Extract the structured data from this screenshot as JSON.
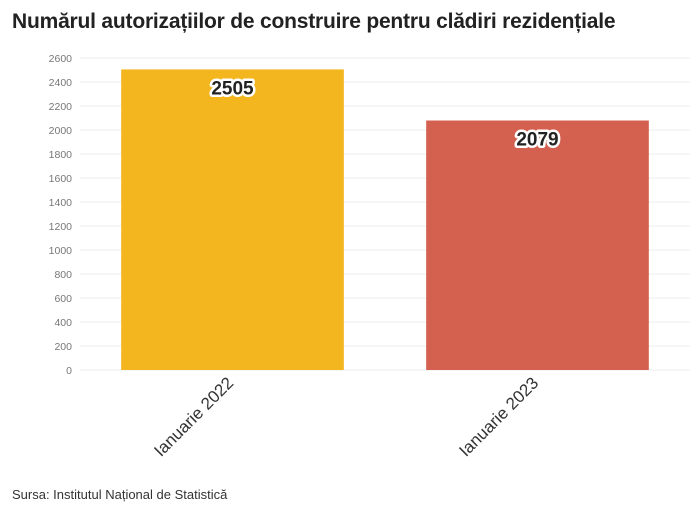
{
  "title": "Numărul autorizațiilor de construire pentru clădiri rezidențiale",
  "source": "Sursa: Institutul Național de Statistică",
  "chart_data": {
    "type": "bar",
    "title": "Numărul autorizațiilor de construire pentru clădiri rezidențiale",
    "categories": [
      "Ianuarie 2022",
      "Ianuarie 2023"
    ],
    "values": [
      2505,
      2079
    ],
    "data_labels": [
      "2505",
      "2079"
    ],
    "colors": [
      "#f4b61f",
      "#d4604f"
    ],
    "ylim": [
      0,
      2600
    ],
    "yticks": [
      0,
      200,
      400,
      600,
      800,
      1000,
      1200,
      1400,
      1600,
      1800,
      2000,
      2200,
      2400,
      2600
    ],
    "xlabel": "",
    "ylabel": "",
    "grid": true,
    "legend": "none"
  }
}
